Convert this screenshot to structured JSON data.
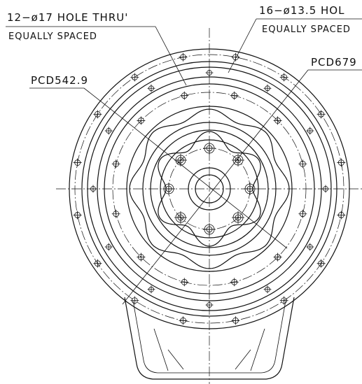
{
  "annotations": [
    {
      "text": "12−ø17 HOLE THRU'",
      "note": "EQUALLY SPACED"
    },
    {
      "text": "16−ø13.5 HOL",
      "note": "EQUALLY SPACED"
    },
    {
      "text": "PCD679"
    },
    {
      "text": "PCD542.9"
    }
  ]
}
